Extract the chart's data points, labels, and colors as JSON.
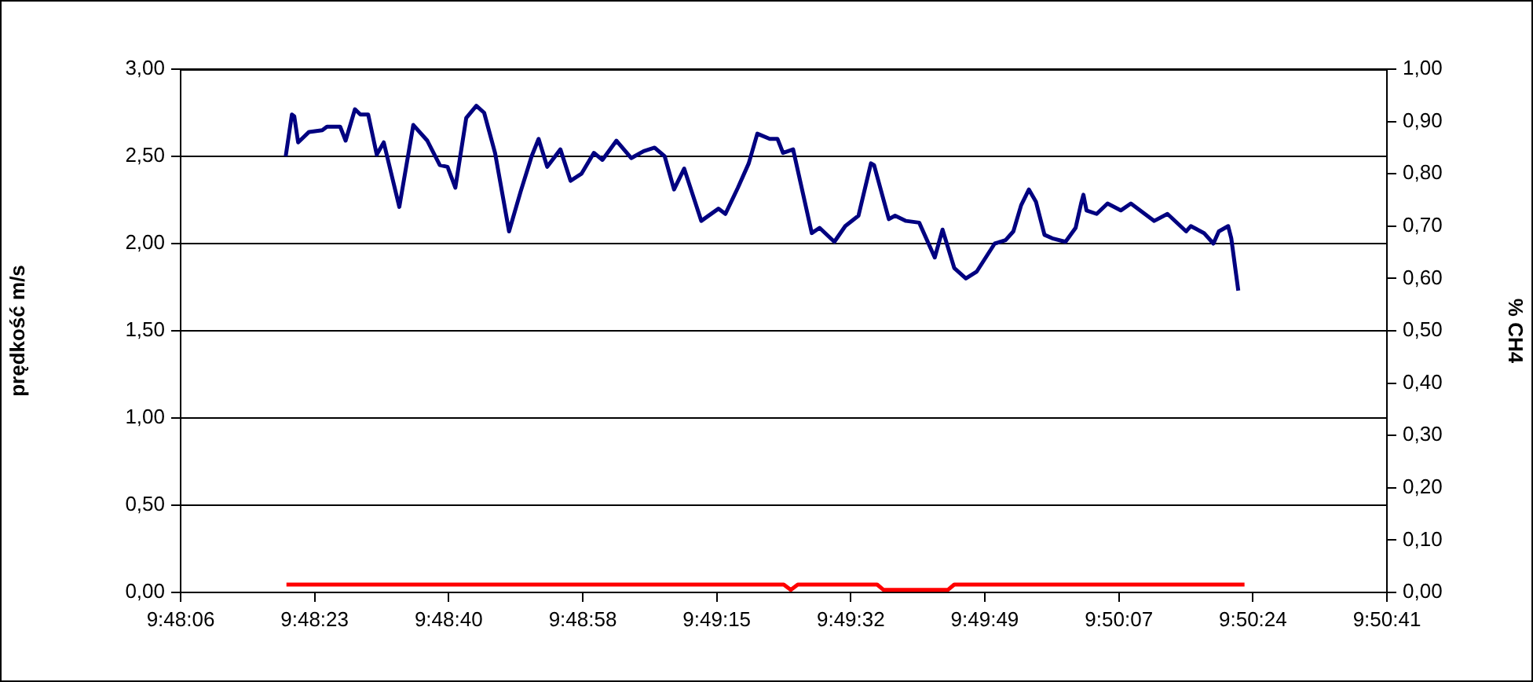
{
  "chart_data": {
    "type": "line",
    "ylabel": "prędkość m/s",
    "y2label": "% CH4",
    "marker": "none",
    "grid": "y",
    "legend": false,
    "xlim": [
      9.801667,
      9.844722
    ],
    "xticks": [
      {
        "value": 9.801667,
        "label": "9:48:06"
      },
      {
        "value": 9.80645,
        "label": "9:48:23"
      },
      {
        "value": 9.811233,
        "label": "9:48:40"
      },
      {
        "value": 9.816019,
        "label": "9:48:58"
      },
      {
        "value": 9.820803,
        "label": "9:49:15"
      },
      {
        "value": 9.825586,
        "label": "9:49:32"
      },
      {
        "value": 9.830369,
        "label": "9:49:49"
      },
      {
        "value": 9.835156,
        "label": "9:50:07"
      },
      {
        "value": 9.839939,
        "label": "9:50:24"
      },
      {
        "value": 9.844722,
        "label": "9:50:41"
      }
    ],
    "ylim": [
      0,
      3
    ],
    "yticks": [
      {
        "value": 0,
        "label": "0,00"
      },
      {
        "value": 0.5,
        "label": "0,50"
      },
      {
        "value": 1,
        "label": "1,00"
      },
      {
        "value": 1.5,
        "label": "1,50"
      },
      {
        "value": 2,
        "label": "2,00"
      },
      {
        "value": 2.5,
        "label": "2,50"
      },
      {
        "value": 3,
        "label": "3,00"
      }
    ],
    "y2lim": [
      0,
      1
    ],
    "y2ticks": [
      {
        "value": 0,
        "label": "0,00"
      },
      {
        "value": 0.1,
        "label": "0,10"
      },
      {
        "value": 0.2,
        "label": "0,20"
      },
      {
        "value": 0.3,
        "label": "0,30"
      },
      {
        "value": 0.4,
        "label": "0,40"
      },
      {
        "value": 0.5,
        "label": "0,50"
      },
      {
        "value": 0.6,
        "label": "0,60"
      },
      {
        "value": 0.7,
        "label": "0,70"
      },
      {
        "value": 0.8,
        "label": "0,80"
      },
      {
        "value": 0.9,
        "label": "0,90"
      },
      {
        "value": 1,
        "label": "1,00"
      }
    ],
    "series": [
      {
        "color": "#000080",
        "x": [
          9.805417,
          9.805639,
          9.805722,
          9.805861,
          9.80625,
          9.806722,
          9.806889,
          9.807361,
          9.807556,
          9.807889,
          9.808083,
          9.808361,
          9.808667,
          9.808917,
          9.809472,
          9.809972,
          9.810472,
          9.810917,
          9.811194,
          9.811472,
          9.811861,
          9.812222,
          9.8125,
          9.812889,
          9.813389,
          9.813806,
          9.814194,
          9.814444,
          9.81475,
          9.815222,
          9.815583,
          9.815972,
          9.816417,
          9.816722,
          9.817222,
          9.81775,
          9.818194,
          9.818583,
          9.818944,
          9.819278,
          9.819639,
          9.82025,
          9.820861,
          9.821111,
          9.821556,
          9.821944,
          9.82225,
          9.822694,
          9.822972,
          9.823167,
          9.823528,
          9.824194,
          9.824472,
          9.825,
          9.825389,
          9.825861,
          9.826306,
          9.826417,
          9.826944,
          9.827167,
          9.827556,
          9.828028,
          9.828583,
          9.828861,
          9.829278,
          9.829694,
          9.830083,
          9.830722,
          9.831111,
          9.831389,
          9.831667,
          9.831944,
          9.832194,
          9.8325,
          9.832778,
          9.83325,
          9.833611,
          9.833806,
          9.833889,
          9.834,
          9.834361,
          9.83475,
          9.835222,
          9.835583,
          9.836417,
          9.836889,
          9.837556,
          9.837722,
          9.838194,
          9.838528,
          9.838722,
          9.839056,
          9.839167,
          9.839417
        ],
        "values": [
          2.5,
          2.74,
          2.73,
          2.58,
          2.64,
          2.65,
          2.67,
          2.67,
          2.59,
          2.77,
          2.74,
          2.74,
          2.51,
          2.58,
          2.21,
          2.68,
          2.59,
          2.45,
          2.44,
          2.32,
          2.72,
          2.79,
          2.75,
          2.52,
          2.07,
          2.3,
          2.5,
          2.6,
          2.44,
          2.54,
          2.36,
          2.4,
          2.52,
          2.48,
          2.59,
          2.49,
          2.53,
          2.55,
          2.5,
          2.31,
          2.43,
          2.13,
          2.2,
          2.17,
          2.32,
          2.46,
          2.63,
          2.6,
          2.6,
          2.52,
          2.54,
          2.06,
          2.09,
          2.01,
          2.1,
          2.16,
          2.46,
          2.45,
          2.14,
          2.16,
          2.13,
          2.12,
          1.92,
          2.08,
          1.86,
          1.8,
          1.84,
          2.0,
          2.02,
          2.07,
          2.22,
          2.31,
          2.24,
          2.05,
          2.03,
          2.01,
          2.09,
          2.23,
          2.28,
          2.19,
          2.17,
          2.23,
          2.19,
          2.23,
          2.13,
          2.17,
          2.07,
          2.1,
          2.06,
          2.0,
          2.07,
          2.1,
          2.03,
          1.73
        ]
      },
      {
        "color": "#ff0000",
        "axis": "y2",
        "x": [
          9.805444,
          9.823194,
          9.823444,
          9.823694,
          9.826528,
          9.82675,
          9.829056,
          9.829278,
          9.839639
        ],
        "values": [
          0.015,
          0.015,
          0.005,
          0.015,
          0.015,
          0.005,
          0.005,
          0.015,
          0.015
        ]
      }
    ]
  }
}
